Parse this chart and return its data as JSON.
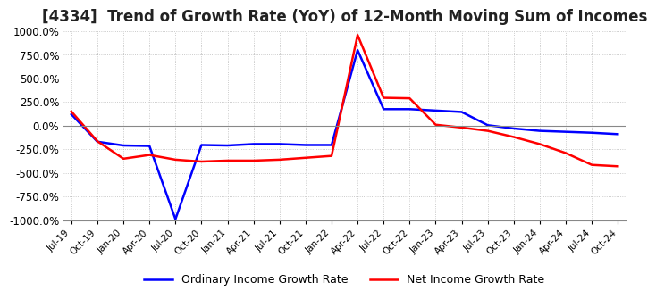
{
  "title": "[4334]  Trend of Growth Rate (YoY) of 12-Month Moving Sum of Incomes",
  "ordinary_income": {
    "dates": [
      "Jul-19",
      "Oct-19",
      "Jan-20",
      "Apr-20",
      "Jul-20",
      "Oct-20",
      "Jan-21",
      "Apr-21",
      "Jul-21",
      "Oct-21",
      "Jan-22",
      "Apr-22",
      "Jul-22",
      "Oct-22",
      "Jan-23",
      "Apr-23",
      "Jul-23",
      "Oct-23",
      "Jan-24",
      "Apr-24",
      "Jul-24",
      "Oct-24"
    ],
    "values": [
      120,
      -170,
      -210,
      -215,
      -990,
      -205,
      -210,
      -195,
      -195,
      -205,
      -205,
      800,
      175,
      175,
      160,
      145,
      5,
      -30,
      -55,
      -65,
      -75,
      -90
    ]
  },
  "net_income": {
    "dates": [
      "Jul-19",
      "Oct-19",
      "Jan-20",
      "Apr-20",
      "Jul-20",
      "Oct-20",
      "Jan-21",
      "Apr-21",
      "Jul-21",
      "Oct-21",
      "Jan-22",
      "Apr-22",
      "Jul-22",
      "Oct-22",
      "Jan-23",
      "Apr-23",
      "Jul-23",
      "Oct-23",
      "Jan-24",
      "Apr-24",
      "Jul-24",
      "Oct-24"
    ],
    "values": [
      150,
      -165,
      -350,
      -310,
      -360,
      -380,
      -370,
      -370,
      -360,
      -340,
      -320,
      960,
      295,
      290,
      10,
      -20,
      -55,
      -120,
      -195,
      -290,
      -415,
      -430
    ]
  },
  "ylim": [
    -1000,
    1000
  ],
  "yticks": [
    -1000,
    -750,
    -500,
    -250,
    0,
    250,
    500,
    750,
    1000
  ],
  "ordinary_color": "#0000ff",
  "net_color": "#ff0000",
  "background_color": "#ffffff",
  "grid_color": "#bbbbbb",
  "title_fontsize": 12,
  "legend_labels": [
    "Ordinary Income Growth Rate",
    "Net Income Growth Rate"
  ]
}
